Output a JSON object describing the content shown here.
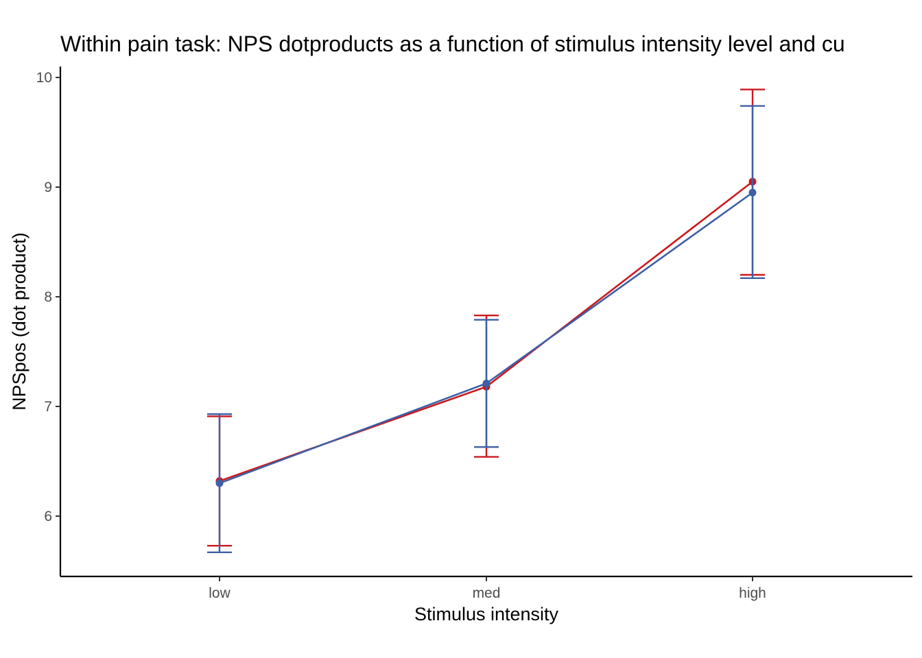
{
  "chart_data": {
    "type": "line",
    "title": "Within pain task: NPS dotproducts as a function of stimulus intensity level and cu",
    "xlabel": "Stimulus intensity",
    "ylabel": "NPSpos (dot product)",
    "categories": [
      "low",
      "med",
      "high"
    ],
    "ylim": [
      5.45,
      10.1
    ],
    "yticks": [
      6,
      7,
      8,
      9,
      10
    ],
    "grid": false,
    "series": [
      {
        "color": "#cb181d",
        "values": [
          6.32,
          7.18,
          9.05
        ],
        "lower": [
          5.73,
          6.54,
          8.2
        ],
        "upper": [
          6.91,
          7.83,
          9.89
        ]
      },
      {
        "color": "#3e5fa6",
        "values": [
          6.3,
          7.21,
          8.95
        ],
        "lower": [
          5.67,
          6.63,
          8.17
        ],
        "upper": [
          6.93,
          7.79,
          9.74
        ]
      }
    ]
  }
}
